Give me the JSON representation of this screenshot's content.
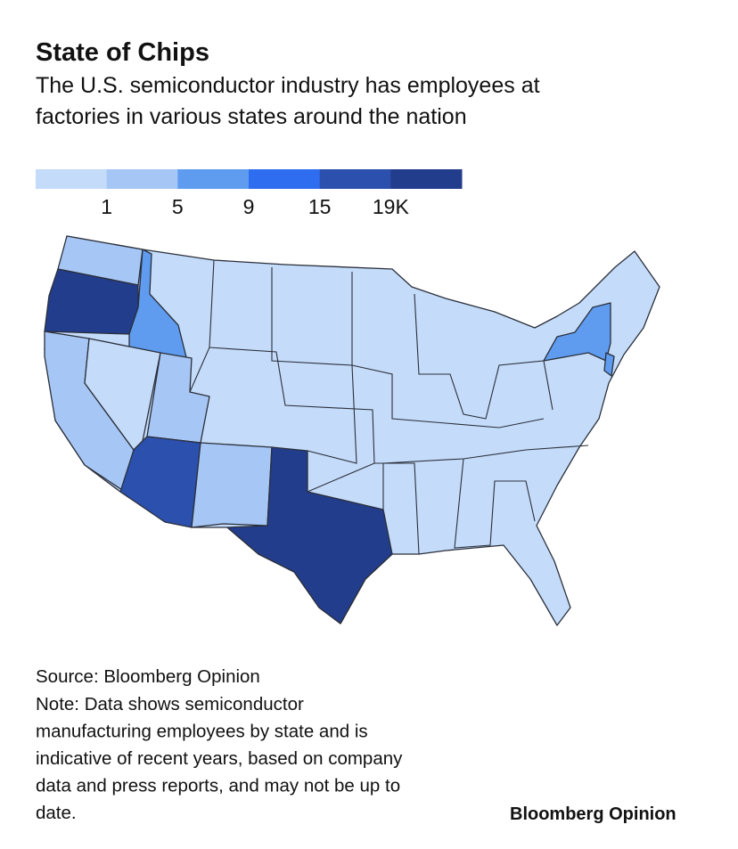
{
  "header": {
    "title": "State of Chips",
    "subtitle": [
      "The U.S. semiconductor industry has employees at",
      "factories in various states around the nation"
    ]
  },
  "legend": {
    "colors": [
      "#c4dcfa",
      "#a6c7f5",
      "#5f9cef",
      "#2f6df0",
      "#2c50ad",
      "#223d8c"
    ],
    "labels": [
      "1",
      "5",
      "9",
      "15",
      "19K"
    ]
  },
  "footer": {
    "source": "Source: Bloomberg Opinion",
    "note": [
      "Note: Data shows semiconductor",
      "manufacturing employees by state and is",
      "indicative of recent years, based on company",
      "data and press reports, and may not be up to",
      "date."
    ],
    "brand": "Bloomberg Opinion"
  }
}
